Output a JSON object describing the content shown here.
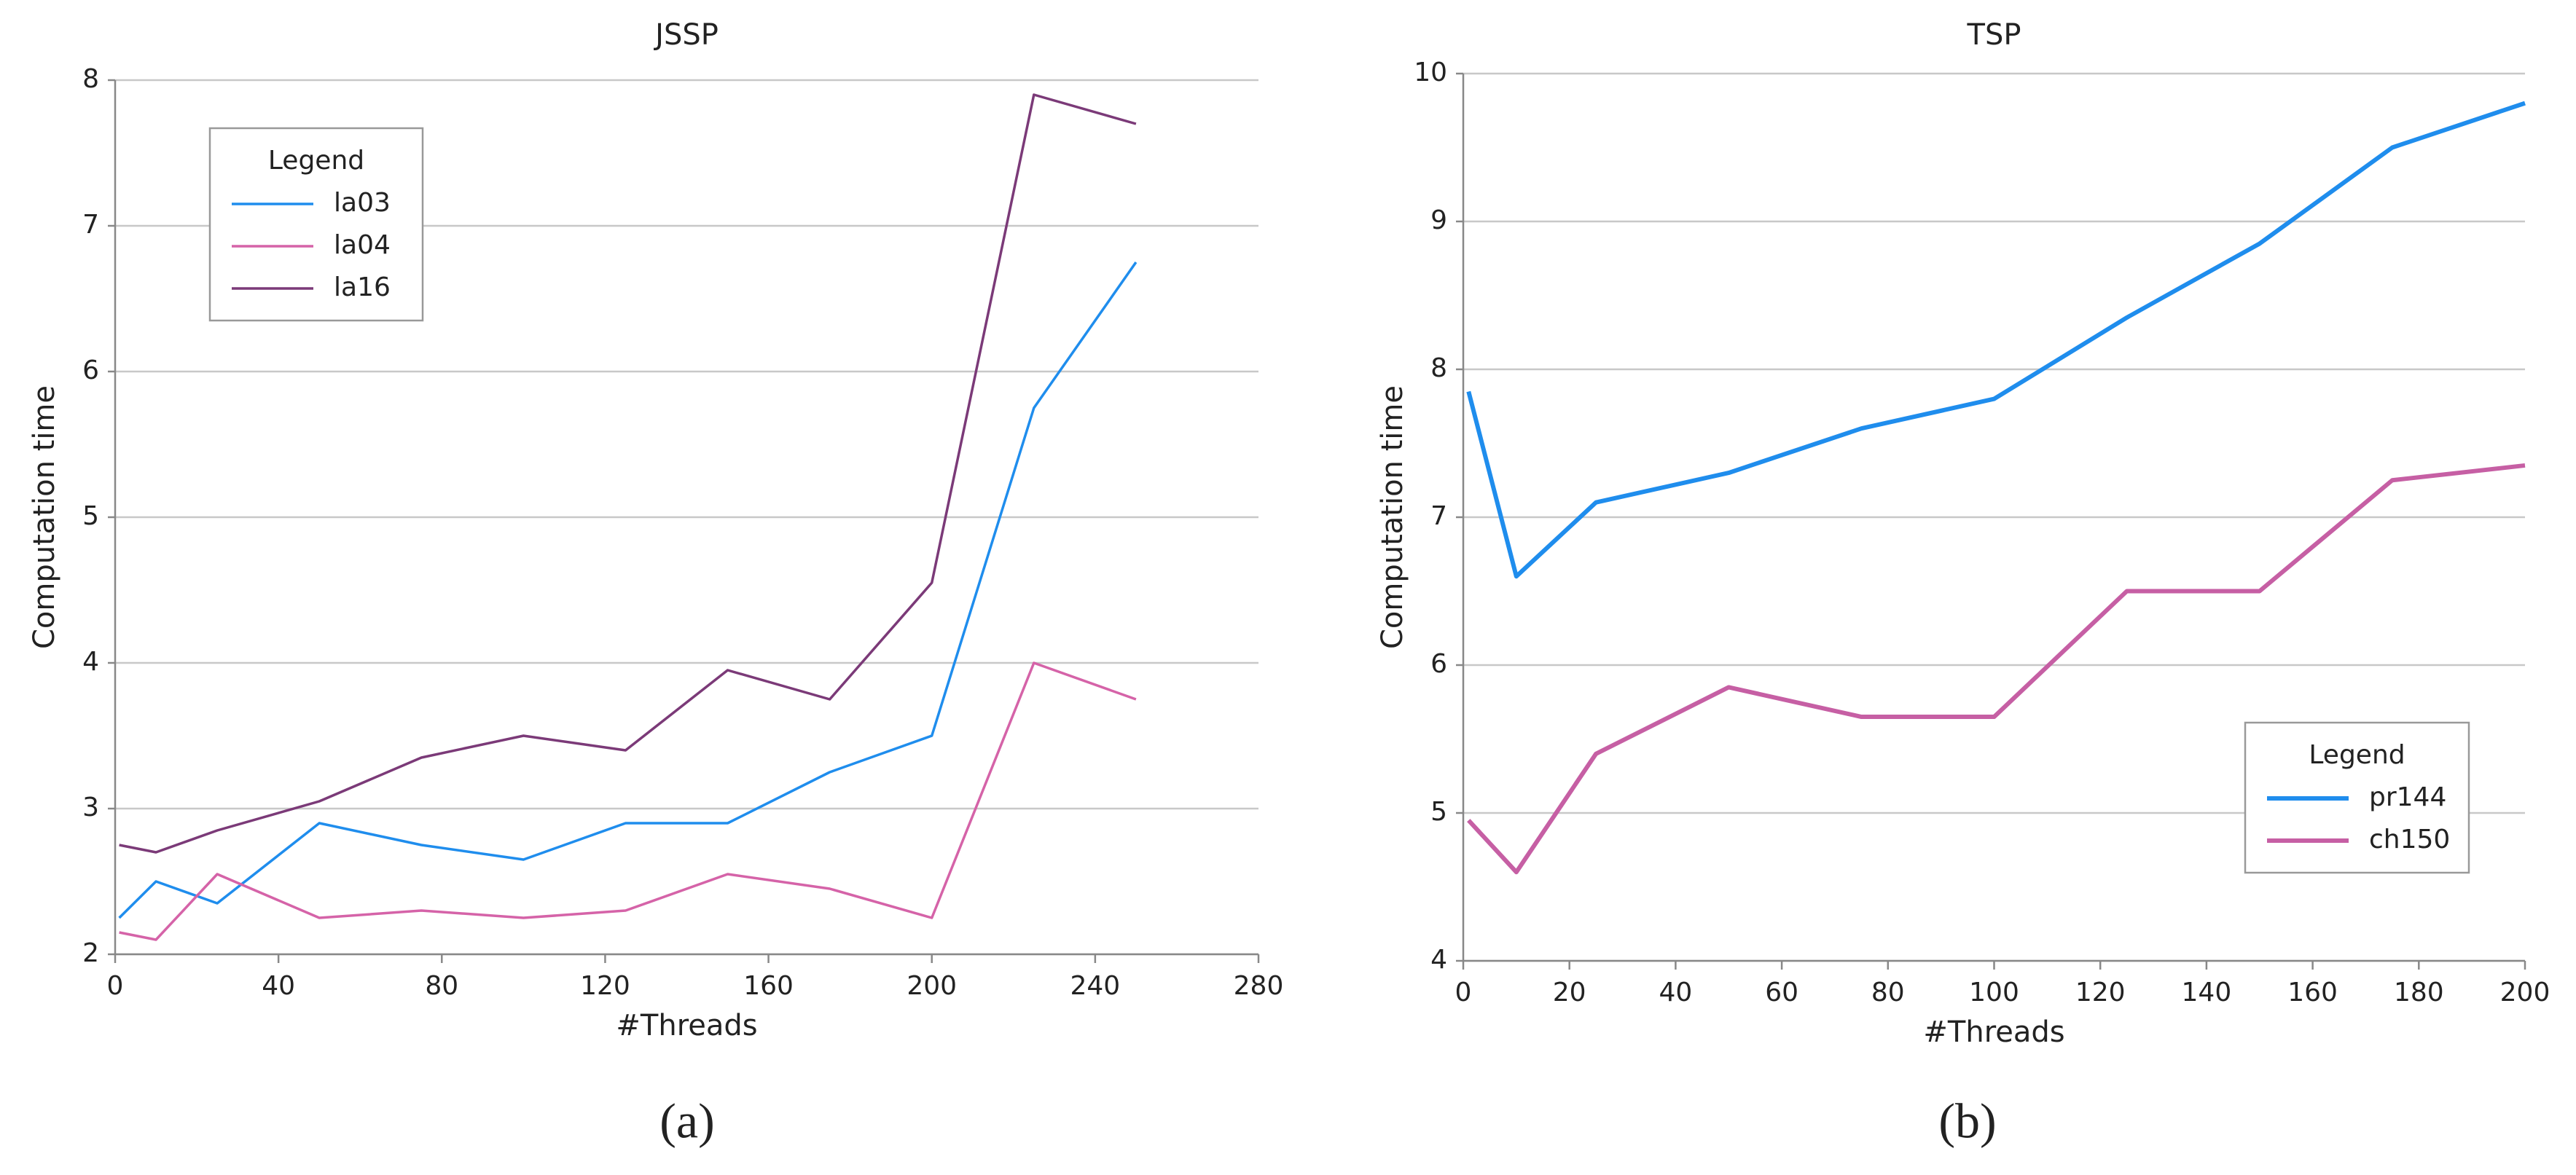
{
  "chart_data": [
    {
      "type": "line",
      "title": "JSSP",
      "xlabel": "#Threads",
      "ylabel": "Computation time",
      "panel_label": "(a)",
      "x": [
        1,
        10,
        25,
        50,
        75,
        100,
        125,
        150,
        175,
        200,
        225,
        250
      ],
      "series": [
        {
          "name": "la03",
          "color": "#1f8ded",
          "values": [
            2.25,
            2.5,
            2.35,
            2.9,
            2.75,
            2.65,
            2.9,
            2.9,
            3.25,
            3.5,
            5.75,
            6.75
          ]
        },
        {
          "name": "la04",
          "color": "#d563a8",
          "values": [
            2.15,
            2.1,
            2.55,
            2.25,
            2.3,
            2.25,
            2.3,
            2.55,
            2.45,
            2.25,
            4.0,
            3.75
          ]
        },
        {
          "name": "la16",
          "color": "#7b3a78",
          "values": [
            2.75,
            2.7,
            2.85,
            3.05,
            3.35,
            3.5,
            3.4,
            3.95,
            3.75,
            4.55,
            7.9,
            7.7
          ]
        }
      ],
      "xlim": [
        0,
        280
      ],
      "xticks": [
        0,
        40,
        80,
        120,
        160,
        200,
        240,
        280
      ],
      "ylim": [
        2,
        8
      ],
      "yticks": [
        2,
        3,
        4,
        5,
        6,
        7,
        8
      ],
      "grid": true,
      "legend_title": "Legend",
      "legend_loc": "upper left"
    },
    {
      "type": "line",
      "title": "TSP",
      "xlabel": "#Threads",
      "ylabel": "Computation time",
      "panel_label": "(b)",
      "x": [
        1,
        10,
        25,
        50,
        75,
        100,
        125,
        150,
        175,
        200
      ],
      "series": [
        {
          "name": "pr144",
          "color": "#1f8ded",
          "values": [
            7.85,
            6.6,
            7.1,
            7.3,
            7.6,
            7.8,
            8.35,
            8.85,
            9.5,
            9.8
          ]
        },
        {
          "name": "ch150",
          "color": "#c65fa4",
          "values": [
            4.95,
            4.6,
            5.4,
            5.85,
            5.65,
            5.65,
            6.5,
            6.5,
            7.25,
            7.35
          ]
        }
      ],
      "xlim": [
        0,
        200
      ],
      "xticks": [
        0,
        20,
        40,
        60,
        80,
        100,
        120,
        140,
        160,
        180,
        200
      ],
      "ylim": [
        4,
        10
      ],
      "yticks": [
        4,
        5,
        6,
        7,
        8,
        9,
        10
      ],
      "grid": true,
      "legend_title": "Legend",
      "legend_loc": "lower right"
    }
  ]
}
